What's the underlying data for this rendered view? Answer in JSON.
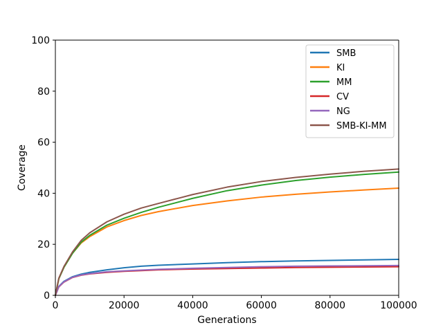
{
  "chart_data": {
    "type": "line",
    "title": "",
    "xlabel": "Generations",
    "ylabel": "Coverage",
    "xlim": [
      0,
      100000
    ],
    "ylim": [
      0,
      100
    ],
    "xticks": [
      0,
      20000,
      40000,
      60000,
      80000,
      100000
    ],
    "xtick_labels": [
      "0",
      "20000",
      "40000",
      "60000",
      "80000",
      "100000"
    ],
    "yticks": [
      0,
      20,
      40,
      60,
      80,
      100
    ],
    "ytick_labels": [
      "0",
      "20",
      "40",
      "60",
      "80",
      "100"
    ],
    "grid": false,
    "legend_position": "top-right",
    "x": [
      0,
      1000,
      2500,
      5000,
      7500,
      10000,
      15000,
      20000,
      25000,
      30000,
      40000,
      50000,
      60000,
      70000,
      80000,
      90000,
      100000
    ],
    "series": [
      {
        "name": "SMB",
        "color": "#1f77b4",
        "values": [
          0,
          3.5,
          5.5,
          7.3,
          8.3,
          9.0,
          10.0,
          10.8,
          11.4,
          11.8,
          12.3,
          12.8,
          13.2,
          13.5,
          13.7,
          13.9,
          14.1
        ]
      },
      {
        "name": "KI",
        "color": "#ff7f0e",
        "values": [
          0,
          6.5,
          11.0,
          16.5,
          20.5,
          23.0,
          26.8,
          29.3,
          31.3,
          32.8,
          35.2,
          37.0,
          38.5,
          39.6,
          40.5,
          41.3,
          42.0
        ]
      },
      {
        "name": "MM",
        "color": "#2ca02c",
        "values": [
          0,
          6.5,
          11.0,
          16.5,
          20.8,
          23.5,
          27.5,
          30.2,
          32.5,
          34.5,
          38.0,
          41.0,
          43.2,
          45.0,
          46.3,
          47.4,
          48.3
        ]
      },
      {
        "name": "CV",
        "color": "#d62728",
        "values": [
          0,
          3.3,
          5.2,
          7.0,
          7.9,
          8.4,
          9.0,
          9.4,
          9.7,
          10.0,
          10.3,
          10.5,
          10.7,
          10.9,
          11.0,
          11.1,
          11.2
        ]
      },
      {
        "name": "NG",
        "color": "#9467bd",
        "values": [
          0,
          3.4,
          5.3,
          7.1,
          8.0,
          8.5,
          9.2,
          9.6,
          9.9,
          10.2,
          10.6,
          10.9,
          11.2,
          11.4,
          11.5,
          11.6,
          11.7
        ]
      },
      {
        "name": "SMB-KI-MM",
        "color": "#8c564b",
        "values": [
          0,
          6.7,
          11.3,
          17.0,
          21.5,
          24.5,
          28.8,
          31.8,
          34.2,
          36.0,
          39.5,
          42.4,
          44.6,
          46.2,
          47.5,
          48.6,
          49.5
        ]
      }
    ]
  }
}
